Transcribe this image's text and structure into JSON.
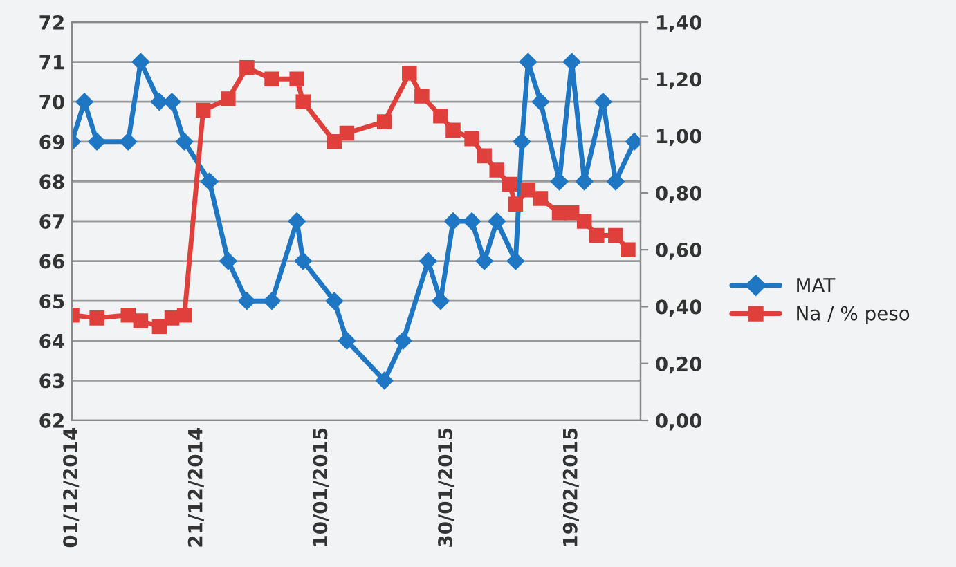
{
  "chart_data": {
    "type": "line",
    "xlim": [
      "2014-12-01",
      "2015-03-02"
    ],
    "xticks": [
      {
        "value": "2014-12-01",
        "label": "01/12/2014"
      },
      {
        "value": "2014-12-21",
        "label": "21/12/2014"
      },
      {
        "value": "2015-01-10",
        "label": "10/01/2015"
      },
      {
        "value": "2015-01-30",
        "label": "30/01/2015"
      },
      {
        "value": "2015-02-19",
        "label": "19/02/2015"
      }
    ],
    "ylim": [
      62,
      72
    ],
    "yticks": [
      62,
      63,
      64,
      65,
      66,
      67,
      68,
      69,
      70,
      71,
      72
    ],
    "y2lim": [
      0,
      1.4
    ],
    "y2ticks": [
      {
        "value": 0,
        "label": "0,00"
      },
      {
        "value": 0.2,
        "label": "0,20"
      },
      {
        "value": 0.4,
        "label": "0,40"
      },
      {
        "value": 0.6,
        "label": "0,60"
      },
      {
        "value": 0.8,
        "label": "0,80"
      },
      {
        "value": 1.0,
        "label": "1,00"
      },
      {
        "value": 1.2,
        "label": "1,20"
      },
      {
        "value": 1.4,
        "label": "1,40"
      }
    ],
    "grid": "y",
    "legend": "right",
    "series": [
      {
        "name": "MAT",
        "color": "#1f77c4",
        "marker": "diamond",
        "x": [
          "2014-12-01",
          "2014-12-03",
          "2014-12-05",
          "2014-12-10",
          "2014-12-12",
          "2014-12-15",
          "2014-12-17",
          "2014-12-19",
          "2014-12-23",
          "2014-12-26",
          "2014-12-29",
          "2015-01-02",
          "2015-01-06",
          "2015-01-07",
          "2015-01-12",
          "2015-01-14",
          "2015-01-20",
          "2015-01-23",
          "2015-01-27",
          "2015-01-29",
          "2015-01-31",
          "2015-02-03",
          "2015-02-05",
          "2015-02-07",
          "2015-02-10",
          "2015-02-11",
          "2015-02-12",
          "2015-02-14",
          "2015-02-17",
          "2015-02-19",
          "2015-02-21",
          "2015-02-24",
          "2015-02-26",
          "2015-03-01"
        ],
        "values": [
          69,
          70,
          69,
          69,
          71,
          70,
          70,
          69,
          68,
          66,
          65,
          65,
          67,
          66,
          65,
          64,
          63,
          64,
          66,
          65,
          67,
          67,
          66,
          67,
          66,
          69,
          71,
          70,
          68,
          71,
          68,
          70,
          68,
          69
        ]
      },
      {
        "name": "Na / % peso",
        "color": "#e0403c",
        "marker": "square",
        "axis": "y2",
        "x": [
          "2014-12-01",
          "2014-12-05",
          "2014-12-10",
          "2014-12-12",
          "2014-12-15",
          "2014-12-17",
          "2014-12-19",
          "2014-12-22",
          "2014-12-26",
          "2014-12-29",
          "2015-01-02",
          "2015-01-06",
          "2015-01-07",
          "2015-01-12",
          "2015-01-14",
          "2015-01-20",
          "2015-01-24",
          "2015-01-26",
          "2015-01-29",
          "2015-01-31",
          "2015-02-03",
          "2015-02-05",
          "2015-02-07",
          "2015-02-09",
          "2015-02-10",
          "2015-02-12",
          "2015-02-14",
          "2015-02-17",
          "2015-02-19",
          "2015-02-21",
          "2015-02-23",
          "2015-02-26",
          "2015-02-28"
        ],
        "values": [
          0.37,
          0.36,
          0.37,
          0.35,
          0.33,
          0.36,
          0.37,
          1.09,
          1.13,
          1.24,
          1.2,
          1.2,
          1.12,
          0.98,
          1.01,
          1.05,
          1.22,
          1.14,
          1.07,
          1.02,
          0.99,
          0.93,
          0.88,
          0.83,
          0.76,
          0.81,
          0.78,
          0.73,
          0.73,
          0.7,
          0.65,
          0.65,
          0.6
        ]
      }
    ]
  }
}
